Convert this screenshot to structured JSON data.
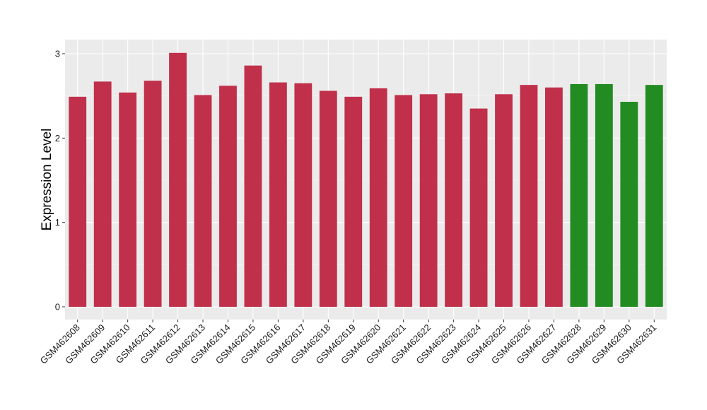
{
  "chart_data": {
    "type": "bar",
    "title": "",
    "xlabel": "",
    "ylabel": "Expression Level",
    "ylim": [
      -0.1,
      3.1
    ],
    "yticks": [
      0,
      1,
      2,
      3
    ],
    "grid": true,
    "legend": "none",
    "background_color": "#ebebeb",
    "gridline_color": "#ffffff",
    "categories": [
      "GSM462608",
      "GSM462609",
      "GSM462610",
      "GSM462611",
      "GSM462612",
      "GSM462613",
      "GSM462614",
      "GSM462615",
      "GSM462616",
      "GSM462617",
      "GSM462618",
      "GSM462619",
      "GSM462620",
      "GSM462621",
      "GSM462622",
      "GSM462623",
      "GSM462624",
      "GSM462625",
      "GSM462626",
      "GSM462627",
      "GSM462628",
      "GSM462629",
      "GSM462630",
      "GSM462631"
    ],
    "values": [
      2.49,
      2.67,
      2.54,
      2.68,
      3.01,
      2.51,
      2.62,
      2.86,
      2.66,
      2.65,
      2.56,
      2.49,
      2.59,
      2.51,
      2.52,
      2.53,
      2.35,
      2.52,
      2.63,
      2.6,
      2.64,
      2.64,
      2.43,
      2.63
    ],
    "bar_colors": [
      "#c0304a",
      "#c0304a",
      "#c0304a",
      "#c0304a",
      "#c0304a",
      "#c0304a",
      "#c0304a",
      "#c0304a",
      "#c0304a",
      "#c0304a",
      "#c0304a",
      "#c0304a",
      "#c0304a",
      "#c0304a",
      "#c0304a",
      "#c0304a",
      "#c0304a",
      "#c0304a",
      "#c0304a",
      "#c0304a",
      "#228b22",
      "#228b22",
      "#228b22",
      "#228b22"
    ]
  }
}
